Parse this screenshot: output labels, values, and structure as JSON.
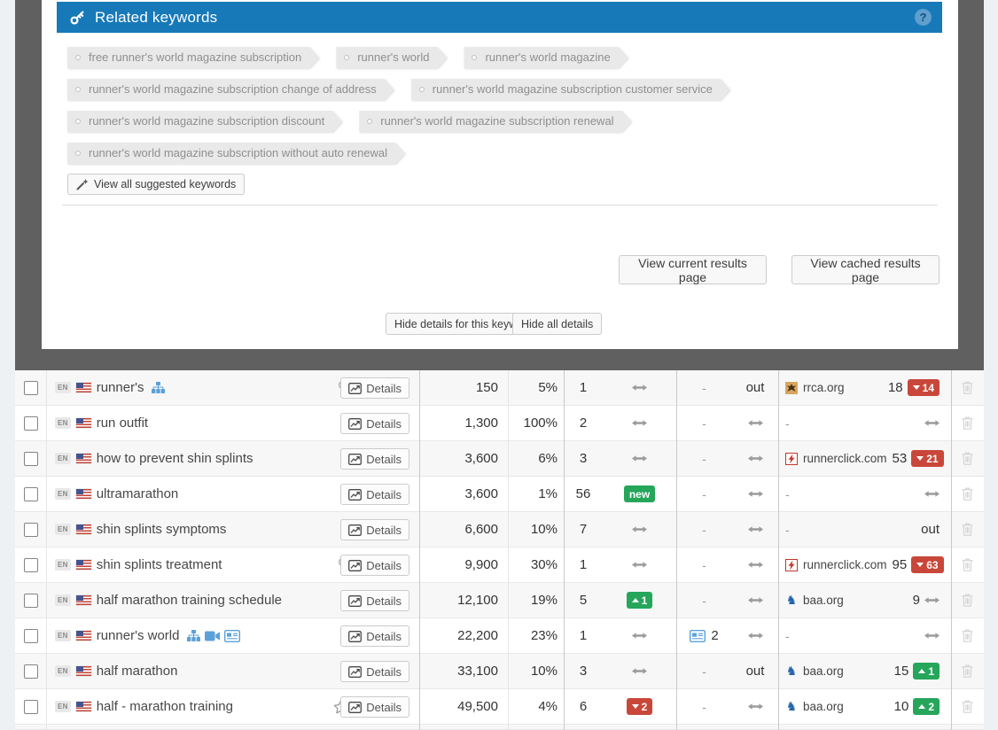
{
  "colors": {
    "header_blue": "#1779b8",
    "badge_red": "#c9473a",
    "badge_green": "#26a65b",
    "icon_blue": "#5ba1d9"
  },
  "panel": {
    "title": "Related keywords",
    "help_label": "?",
    "tag_rows": [
      [
        "free runner's world magazine subscription",
        "runner's world",
        "runner's world magazine"
      ],
      [
        "runner's world magazine subscription change of address",
        "runner's world magazine subscription customer service"
      ],
      [
        "runner's world magazine subscription discount",
        "runner's world magazine subscription renewal"
      ],
      [
        "runner's world magazine subscription without auto renewal"
      ]
    ],
    "view_all_label": "View all suggested keywords",
    "view_current_label": "View current results page",
    "view_cached_label": "View cached results page",
    "hide_keyword_label": "Hide details for this keyword",
    "hide_all_label": "Hide all details"
  },
  "table": {
    "details_label": "Details",
    "lang_badge": "EN",
    "rows": [
      {
        "keyword": "runner's",
        "kicons": [
          "sitemap"
        ],
        "pre": "lightbulb",
        "volume": "150",
        "ctr": "5%",
        "rank": "1",
        "trend": {
          "t": "arrow"
        },
        "news": {
          "t": "dash"
        },
        "extra": {
          "t": "out"
        },
        "domain": {
          "fav": "rrca",
          "name": "rrca.org",
          "num": "18",
          "chg": {
            "t": "down",
            "v": "14"
          }
        }
      },
      {
        "keyword": "run outfit",
        "volume": "1,300",
        "ctr": "100%",
        "rank": "2",
        "trend": {
          "t": "arrow"
        },
        "news": {
          "t": "dash"
        },
        "extra": {
          "t": "arrow"
        },
        "domain": {
          "dash": true,
          "chg": {
            "t": "arrow"
          }
        }
      },
      {
        "keyword": "how to prevent shin splints",
        "volume": "3,600",
        "ctr": "6%",
        "rank": "3",
        "trend": {
          "t": "arrow"
        },
        "news": {
          "t": "dash"
        },
        "extra": {
          "t": "arrow"
        },
        "domain": {
          "fav": "runnerclick",
          "name": "runnerclick.com",
          "num": "53",
          "chg": {
            "t": "down",
            "v": "21"
          }
        }
      },
      {
        "keyword": "ultramarathon",
        "volume": "3,600",
        "ctr": "1%",
        "rank": "56",
        "trend": {
          "t": "new",
          "label": "new"
        },
        "news": {
          "t": "dash"
        },
        "extra": {
          "t": "arrow"
        },
        "domain": {
          "dash": true,
          "chg": {
            "t": "arrow"
          }
        }
      },
      {
        "keyword": "shin splints symptoms",
        "volume": "6,600",
        "ctr": "10%",
        "rank": "7",
        "trend": {
          "t": "arrow"
        },
        "news": {
          "t": "dash"
        },
        "extra": {
          "t": "arrow"
        },
        "domain": {
          "dash": true,
          "chg": {
            "t": "out"
          }
        }
      },
      {
        "keyword": "shin splints treatment",
        "pre": "lightbulb",
        "volume": "9,900",
        "ctr": "30%",
        "rank": "1",
        "trend": {
          "t": "arrow"
        },
        "news": {
          "t": "dash"
        },
        "extra": {
          "t": "arrow"
        },
        "domain": {
          "fav": "runnerclick",
          "name": "runnerclick.com",
          "num": "95",
          "chg": {
            "t": "down",
            "v": "63"
          }
        }
      },
      {
        "keyword": "half marathon training schedule",
        "volume": "12,100",
        "ctr": "19%",
        "rank": "5",
        "trend": {
          "t": "up",
          "v": "1"
        },
        "news": {
          "t": "dash"
        },
        "extra": {
          "t": "arrow"
        },
        "domain": {
          "fav": "baa",
          "name": "baa.org",
          "num": "9",
          "chg": {
            "t": "arrow"
          }
        }
      },
      {
        "keyword": "runner's world",
        "kicons": [
          "sitemap",
          "video",
          "news"
        ],
        "volume": "22,200",
        "ctr": "23%",
        "rank": "1",
        "trend": {
          "t": "arrow"
        },
        "news": {
          "t": "news",
          "v": "2"
        },
        "extra": {
          "t": "arrow"
        },
        "domain": {
          "dash": true,
          "chg": {
            "t": "arrow"
          }
        }
      },
      {
        "keyword": "half marathon",
        "volume": "33,100",
        "ctr": "10%",
        "rank": "3",
        "trend": {
          "t": "arrow"
        },
        "news": {
          "t": "dash"
        },
        "extra": {
          "t": "out"
        },
        "domain": {
          "fav": "baa",
          "name": "baa.org",
          "num": "15",
          "chg": {
            "t": "up",
            "v": "1"
          }
        }
      },
      {
        "keyword": "half - marathon training",
        "pre": "star",
        "volume": "49,500",
        "ctr": "4%",
        "rank": "6",
        "trend": {
          "t": "down",
          "v": "2"
        },
        "news": {
          "t": "dash"
        },
        "extra": {
          "t": "arrow"
        },
        "domain": {
          "fav": "baa",
          "name": "baa.org",
          "num": "10",
          "chg": {
            "t": "up",
            "v": "2"
          }
        }
      }
    ]
  }
}
